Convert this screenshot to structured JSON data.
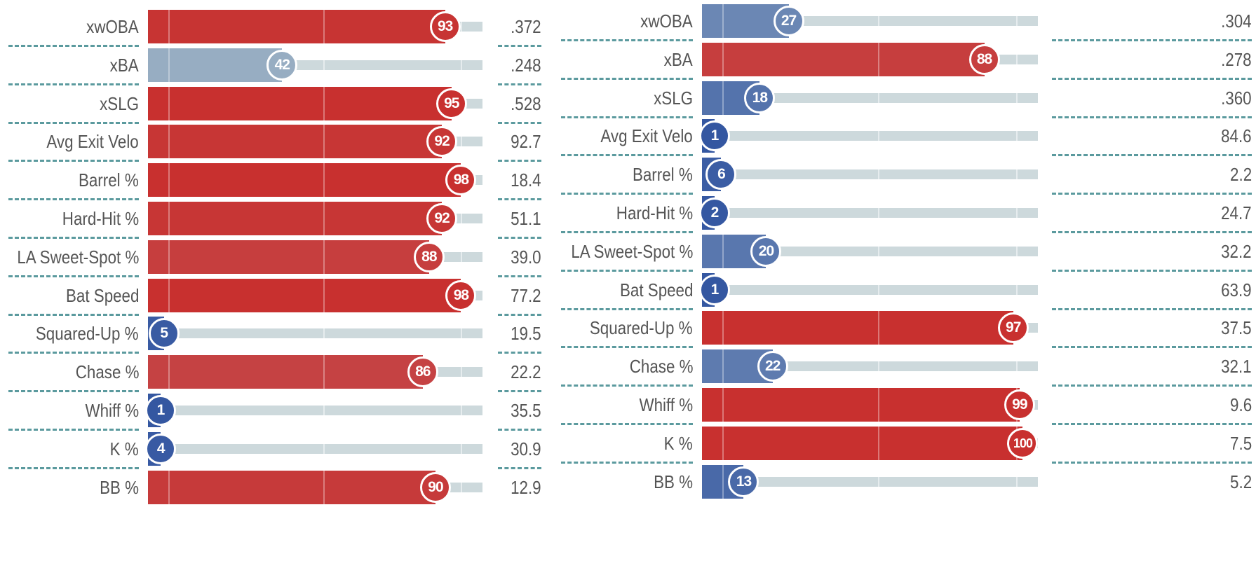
{
  "chart_data": [
    {
      "type": "bar",
      "orientation": "horizontal",
      "scale": [
        0,
        100
      ],
      "colors": {
        "low": "#3356a1",
        "mid": "#b0c3cb",
        "high": "#c8302f"
      },
      "rows": [
        {
          "label": "xwOBA",
          "percentile": 93,
          "value": ".372"
        },
        {
          "label": "xBA",
          "percentile": 42,
          "value": ".248"
        },
        {
          "label": "xSLG",
          "percentile": 95,
          "value": ".528"
        },
        {
          "label": "Avg Exit Velo",
          "percentile": 92,
          "value": "92.7"
        },
        {
          "label": "Barrel %",
          "percentile": 98,
          "value": "18.4"
        },
        {
          "label": "Hard-Hit %",
          "percentile": 92,
          "value": "51.1"
        },
        {
          "label": "LA Sweet-Spot %",
          "percentile": 88,
          "value": "39.0"
        },
        {
          "label": "Bat Speed",
          "percentile": 98,
          "value": "77.2"
        },
        {
          "label": "Squared-Up %",
          "percentile": 5,
          "value": "19.5"
        },
        {
          "label": "Chase %",
          "percentile": 86,
          "value": "22.2"
        },
        {
          "label": "Whiff %",
          "percentile": 1,
          "value": "35.5"
        },
        {
          "label": "K %",
          "percentile": 4,
          "value": "30.9"
        },
        {
          "label": "BB %",
          "percentile": 90,
          "value": "12.9"
        }
      ]
    },
    {
      "type": "bar",
      "orientation": "horizontal",
      "scale": [
        0,
        100
      ],
      "colors": {
        "low": "#3356a1",
        "mid": "#b0c3cb",
        "high": "#c8302f"
      },
      "rows": [
        {
          "label": "xwOBA",
          "percentile": 27,
          "value": ".304"
        },
        {
          "label": "xBA",
          "percentile": 88,
          "value": ".278"
        },
        {
          "label": "xSLG",
          "percentile": 18,
          "value": ".360"
        },
        {
          "label": "Avg Exit Velo",
          "percentile": 1,
          "value": "84.6"
        },
        {
          "label": "Barrel %",
          "percentile": 6,
          "value": "2.2"
        },
        {
          "label": "Hard-Hit %",
          "percentile": 2,
          "value": "24.7"
        },
        {
          "label": "LA Sweet-Spot %",
          "percentile": 20,
          "value": "32.2"
        },
        {
          "label": "Bat Speed",
          "percentile": 1,
          "value": "63.9"
        },
        {
          "label": "Squared-Up %",
          "percentile": 97,
          "value": "37.5"
        },
        {
          "label": "Chase %",
          "percentile": 22,
          "value": "32.1"
        },
        {
          "label": "Whiff %",
          "percentile": 99,
          "value": "9.6"
        },
        {
          "label": "K %",
          "percentile": 100,
          "value": "7.5"
        },
        {
          "label": "BB %",
          "percentile": 13,
          "value": "5.2"
        }
      ]
    }
  ]
}
